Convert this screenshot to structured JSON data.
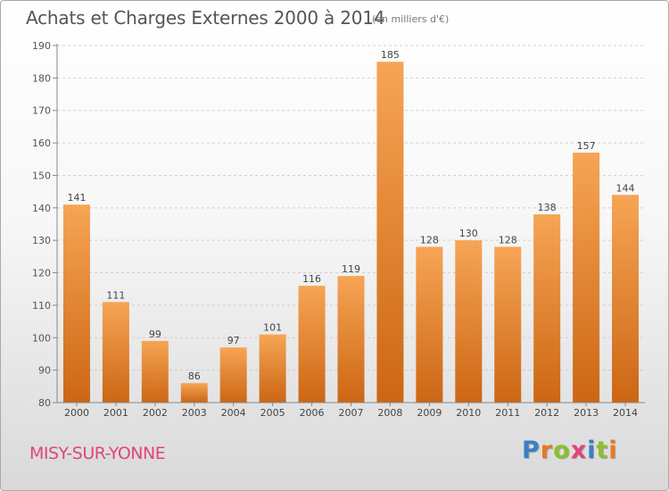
{
  "header": {
    "title": "Achats et Charges Externes 2000 à 2014",
    "subtitle": "(en milliers d'€)"
  },
  "footer": {
    "town": "MISY-SUR-YONNE",
    "logo": "Proxiti"
  },
  "colors": {
    "bar_top": "#f6a555",
    "bar_bottom": "#cc6614",
    "town": "#e0457a",
    "logo": [
      "#3b7fc4",
      "#e67a22",
      "#8bbf2c",
      "#e0457a",
      "#3b7fc4",
      "#8bbf2c",
      "#e67a22"
    ]
  },
  "chart_data": {
    "type": "bar",
    "categories": [
      "2000",
      "2001",
      "2002",
      "2003",
      "2004",
      "2005",
      "2006",
      "2007",
      "2008",
      "2009",
      "2010",
      "2011",
      "2012",
      "2013",
      "2014"
    ],
    "values": [
      141,
      111,
      99,
      86,
      97,
      101,
      116,
      119,
      185,
      128,
      130,
      128,
      138,
      157,
      144
    ],
    "ylim": [
      80,
      190
    ],
    "yticks": [
      80,
      90,
      100,
      110,
      120,
      130,
      140,
      150,
      160,
      170,
      180,
      190
    ],
    "grid": true,
    "data_labels": true
  }
}
